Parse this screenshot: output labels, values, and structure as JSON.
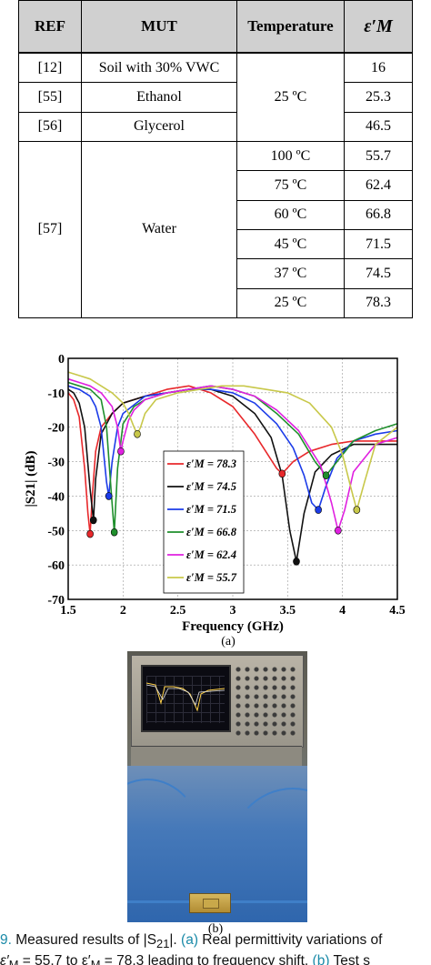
{
  "table": {
    "headers": [
      "REF",
      "MUT",
      "Temperature",
      "ε′M"
    ],
    "rows": [
      {
        "ref": "[12]",
        "mut": "Soil with 30% VWC",
        "temp": "",
        "eps": "16"
      },
      {
        "ref": "[55]",
        "mut": "Ethanol",
        "temp": "25 ºC",
        "eps": "25.3"
      },
      {
        "ref": "[56]",
        "mut": "Glycerol",
        "temp": "",
        "eps": "46.5"
      },
      {
        "ref": "[57]",
        "mut": "Water",
        "temps": [
          "100 ºC",
          "75 ºC",
          "60 ºC",
          "45 ºC",
          "37 ºC",
          "25 ºC"
        ],
        "eps_values": [
          "55.7",
          "62.4",
          "66.8",
          "71.5",
          "74.5",
          "78.3"
        ]
      }
    ]
  },
  "chart_data": {
    "type": "line",
    "xlabel": "Frequency (GHz)",
    "ylabel": "|S21| (dB)",
    "xlim": [
      1.5,
      4.5
    ],
    "ylim": [
      -70,
      0
    ],
    "xticks": [
      "1.5",
      "2",
      "2.5",
      "3",
      "3.5",
      "4",
      "4.5"
    ],
    "yticks": [
      "0",
      "-10",
      "-20",
      "-30",
      "-40",
      "-50",
      "-60",
      "-70"
    ],
    "grid": true,
    "legend_position": "center",
    "series": [
      {
        "name": "ε′M = 78.3",
        "color": "#e8282b",
        "x": [
          1.5,
          1.55,
          1.6,
          1.65,
          1.68,
          1.7,
          1.72,
          1.75,
          1.8,
          1.9,
          2.0,
          2.2,
          2.4,
          2.6,
          2.8,
          3.0,
          3.2,
          3.3,
          3.4,
          3.45,
          3.55,
          3.7,
          3.9,
          4.1,
          4.3,
          4.5
        ],
        "y": [
          -10,
          -12,
          -17,
          -32,
          -45,
          -51,
          -40,
          -27,
          -20,
          -16,
          -13,
          -11,
          -9,
          -8,
          -10,
          -14,
          -22,
          -27,
          -32,
          -33.5,
          -30,
          -27,
          -25,
          -24,
          -24,
          -24
        ],
        "marker": {
          "x": 1.7,
          "y": -51
        }
      },
      {
        "name": "ε′M = 74.5",
        "color": "#111111",
        "x": [
          1.5,
          1.55,
          1.6,
          1.65,
          1.7,
          1.73,
          1.75,
          1.8,
          1.9,
          2.0,
          2.2,
          2.4,
          2.6,
          2.8,
          3.0,
          3.2,
          3.35,
          3.45,
          3.52,
          3.58,
          3.65,
          3.75,
          3.9,
          4.1,
          4.3,
          4.5
        ],
        "y": [
          -9,
          -10,
          -13,
          -20,
          -38,
          -47,
          -35,
          -22,
          -16,
          -13,
          -11,
          -10,
          -9,
          -9,
          -11,
          -16,
          -23,
          -34,
          -50,
          -59,
          -45,
          -33,
          -28,
          -25,
          -25,
          -25
        ],
        "marker": {
          "x": 1.73,
          "y": -47
        }
      },
      {
        "name": "ε′M = 71.5",
        "color": "#1c3ce8",
        "x": [
          1.5,
          1.6,
          1.7,
          1.75,
          1.8,
          1.85,
          1.87,
          1.9,
          1.95,
          2.0,
          2.2,
          2.4,
          2.6,
          2.8,
          3.0,
          3.2,
          3.4,
          3.55,
          3.65,
          3.72,
          3.78,
          3.85,
          3.95,
          4.1,
          4.3,
          4.5
        ],
        "y": [
          -8,
          -9,
          -11,
          -14,
          -20,
          -36,
          -40,
          -30,
          -20,
          -16,
          -11,
          -10,
          -9,
          -9,
          -10,
          -13,
          -19,
          -26,
          -34,
          -42,
          -44,
          -37,
          -29,
          -24,
          -22,
          -21
        ],
        "marker": {
          "x": 1.87,
          "y": -40
        }
      },
      {
        "name": "ε′M = 66.8",
        "color": "#1f8f2c",
        "x": [
          1.5,
          1.6,
          1.7,
          1.8,
          1.85,
          1.89,
          1.92,
          1.95,
          2.0,
          2.1,
          2.2,
          2.4,
          2.6,
          2.8,
          3.0,
          3.2,
          3.4,
          3.6,
          3.75,
          3.85,
          3.95,
          4.1,
          4.3,
          4.5
        ],
        "y": [
          -7,
          -8,
          -9,
          -12,
          -20,
          -38,
          -50.5,
          -32,
          -19,
          -14,
          -12,
          -10,
          -9,
          -8,
          -9,
          -11,
          -16,
          -22,
          -30,
          -34,
          -30,
          -24,
          -21,
          -19
        ],
        "marker": {
          "x": 1.92,
          "y": -50.5
        }
      },
      {
        "name": "ε′M = 62.4",
        "color": "#e020e0",
        "x": [
          1.5,
          1.6,
          1.7,
          1.8,
          1.9,
          1.95,
          1.98,
          2.0,
          2.05,
          2.1,
          2.2,
          2.4,
          2.6,
          2.8,
          3.0,
          3.2,
          3.4,
          3.6,
          3.8,
          3.9,
          3.96,
          4.02,
          4.1,
          4.3,
          4.5
        ],
        "y": [
          -6,
          -7,
          -8,
          -10,
          -14,
          -20,
          -27,
          -24,
          -18,
          -15,
          -12,
          -10,
          -9,
          -8,
          -9,
          -11,
          -15,
          -21,
          -31,
          -42,
          -50,
          -44,
          -33,
          -25,
          -23
        ],
        "marker": {
          "x": 1.98,
          "y": -27
        }
      },
      {
        "name": "ε′M = 55.7",
        "color": "#c8c84a",
        "x": [
          1.5,
          1.6,
          1.7,
          1.8,
          1.9,
          2.0,
          2.05,
          2.1,
          2.13,
          2.16,
          2.2,
          2.3,
          2.5,
          2.7,
          2.9,
          3.1,
          3.3,
          3.5,
          3.7,
          3.9,
          4.0,
          4.08,
          4.13,
          4.2,
          4.3,
          4.5
        ],
        "y": [
          -4,
          -5,
          -6,
          -8,
          -10,
          -13,
          -16,
          -20,
          -22,
          -20,
          -16,
          -12,
          -10,
          -9,
          -8,
          -8,
          -9,
          -10,
          -13,
          -20,
          -28,
          -38,
          -44,
          -36,
          -25,
          -20
        ],
        "marker": {
          "x": 2.13,
          "y": -22
        }
      }
    ],
    "extra_markers": [
      {
        "series": 0,
        "x": 3.45,
        "y": -33.5
      },
      {
        "series": 1,
        "x": 3.58,
        "y": -59
      },
      {
        "series": 2,
        "x": 3.78,
        "y": -44
      },
      {
        "series": 3,
        "x": 3.85,
        "y": -34
      },
      {
        "series": 4,
        "x": 3.96,
        "y": -50
      },
      {
        "series": 5,
        "x": 4.13,
        "y": -44
      }
    ]
  },
  "labels": {
    "panel_a": "(a)",
    "panel_b": "(b)"
  },
  "caption": {
    "fig_num": "9.",
    "line1_a": "  Measured results of |S",
    "line1_sub": "21",
    "line1_b": "|. ",
    "line1_link": "(a)",
    "line1_c": " Real permittivity variations of",
    "line2_a": "ε′",
    "line2_b": "M",
    "line2_c": " = 55.7 to ε′",
    "line2_d": "M",
    "line2_e": " = 78.3 leading to frequency shift. ",
    "line2_link": "(b)",
    "line2_f": " Test s"
  },
  "colors": {
    "table_header_bg": "#d0d0d0",
    "caption_link": "#1a8aa8"
  }
}
